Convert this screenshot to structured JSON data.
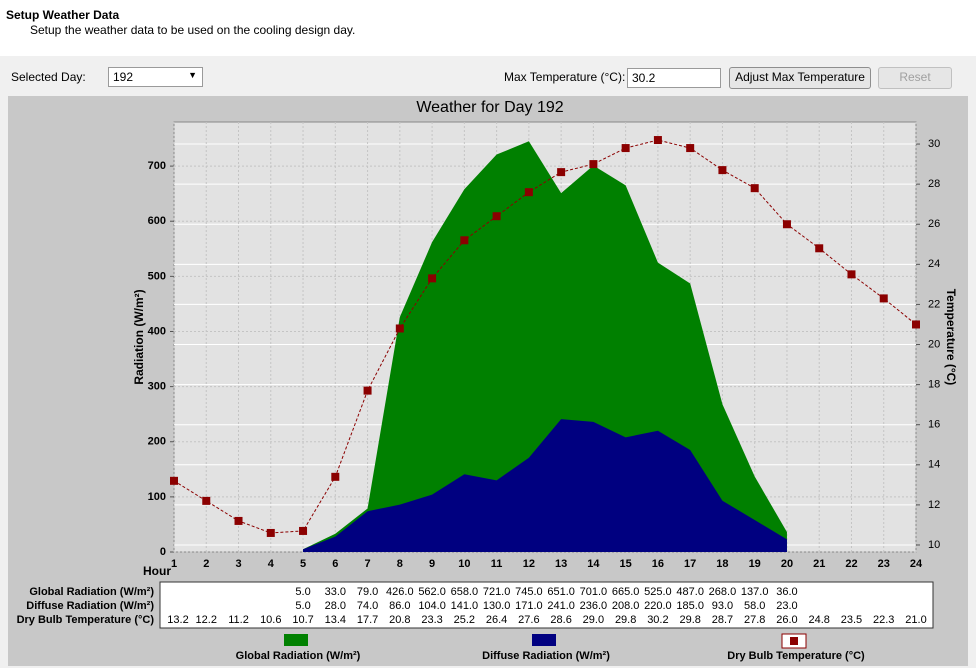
{
  "header": {
    "title": "Setup Weather Data",
    "subtitle": "Setup the weather data to be used on the cooling design day."
  },
  "controls": {
    "selected_day_label": "Selected Day:",
    "selected_day": "192",
    "max_temp_label": "Max Temperature (°C):",
    "max_temp": "30.2",
    "adjust_button": "Adjust Max Temperature",
    "reset_button": "Reset"
  },
  "chart_data": {
    "type": "area",
    "title": "Weather for Day 192",
    "x_label": "Hour",
    "y_label": "Radiation (W/m²)",
    "y2_label": "Temperature (°C)",
    "x": [
      1,
      2,
      3,
      4,
      5,
      6,
      7,
      8,
      9,
      10,
      11,
      12,
      13,
      14,
      15,
      16,
      17,
      18,
      19,
      20,
      21,
      22,
      23,
      24
    ],
    "xlim": [
      1,
      24
    ],
    "ylim": [
      0,
      780
    ],
    "yticks": [
      0,
      100,
      200,
      300,
      400,
      500,
      600,
      700
    ],
    "y2lim": [
      9.65,
      31.1
    ],
    "y2ticks": [
      10,
      12,
      14,
      16,
      18,
      20,
      22,
      24,
      26,
      28,
      30
    ],
    "grid": true,
    "legend": "bottom",
    "series": [
      {
        "name": "Global Radiation (W/m²)",
        "color": "#008000",
        "values": [
          null,
          null,
          null,
          null,
          5,
          33,
          79,
          426,
          562,
          658,
          721,
          745,
          651,
          701,
          665,
          525,
          487,
          268,
          137,
          36,
          null,
          null,
          null,
          null
        ],
        "value_labels": [
          null,
          null,
          null,
          null,
          "5.0",
          "33.0",
          "79.0",
          "426.0",
          "562.0",
          "658.0",
          "721.0",
          "745.0",
          "651.0",
          "701.0",
          "665.0",
          "525.0",
          "487.0",
          "268.0",
          "137.0",
          "36.0",
          null,
          null,
          null,
          null
        ]
      },
      {
        "name": "Diffuse Radiation (W/m²)",
        "color": "#000080",
        "values": [
          null,
          null,
          null,
          null,
          5,
          28,
          74,
          86,
          104,
          141,
          130,
          171,
          241,
          236,
          208,
          220,
          185,
          93,
          58,
          23,
          null,
          null,
          null,
          null
        ],
        "value_labels": [
          null,
          null,
          null,
          null,
          "5.0",
          "28.0",
          "74.0",
          "86.0",
          "104.0",
          "141.0",
          "130.0",
          "171.0",
          "241.0",
          "236.0",
          "208.0",
          "220.0",
          "185.0",
          "93.0",
          "58.0",
          "23.0",
          null,
          null,
          null,
          null
        ]
      },
      {
        "name": "Dry Bulb Temperature (°C)",
        "color": "#8b0000",
        "axis": "y2",
        "type": "line",
        "values": [
          13.2,
          12.2,
          11.2,
          10.6,
          10.7,
          13.4,
          17.7,
          20.8,
          23.3,
          25.2,
          26.4,
          27.6,
          28.6,
          29.0,
          29.8,
          30.2,
          29.8,
          28.7,
          27.8,
          26.0,
          24.8,
          23.5,
          22.3,
          21.0
        ],
        "value_labels": [
          "13.2",
          "12.2",
          "11.2",
          "10.6",
          "10.7",
          "13.4",
          "17.7",
          "20.8",
          "23.3",
          "25.2",
          "26.4",
          "27.6",
          "28.6",
          "29.0",
          "29.8",
          "30.2",
          "29.8",
          "28.7",
          "27.8",
          "26.0",
          "24.8",
          "23.5",
          "22.3",
          "21.0"
        ]
      }
    ]
  }
}
